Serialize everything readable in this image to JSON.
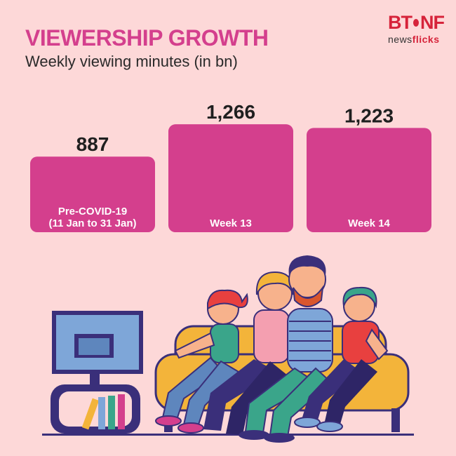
{
  "header": {
    "title": "VIEWERSHIP GROWTH",
    "subtitle": "Weekly viewing minutes (in bn)"
  },
  "logo": {
    "brand_left": "BT",
    "brand_right": "NF",
    "tag_plain": "news",
    "tag_bold": "flicks"
  },
  "colors": {
    "background": "#fdd8d8",
    "bar": "#d43f8d",
    "title": "#d43f8d",
    "logo": "#d6233a"
  },
  "chart_data": {
    "type": "bar",
    "title": "VIEWERSHIP GROWTH",
    "subtitle": "Weekly viewing minutes (in bn)",
    "categories": [
      [
        "Pre-COVID-19",
        "(11 Jan to 31 Jan)"
      ],
      [
        "Week 13"
      ],
      [
        "Week 14"
      ]
    ],
    "values": [
      887,
      1266,
      1223
    ],
    "value_labels": [
      "887",
      "1,266",
      "1,223"
    ],
    "ylim": [
      0,
      1400
    ],
    "grid": false,
    "legend": "none"
  },
  "illustration": {
    "description_icon": "family-on-couch-watching-tv-icon"
  }
}
